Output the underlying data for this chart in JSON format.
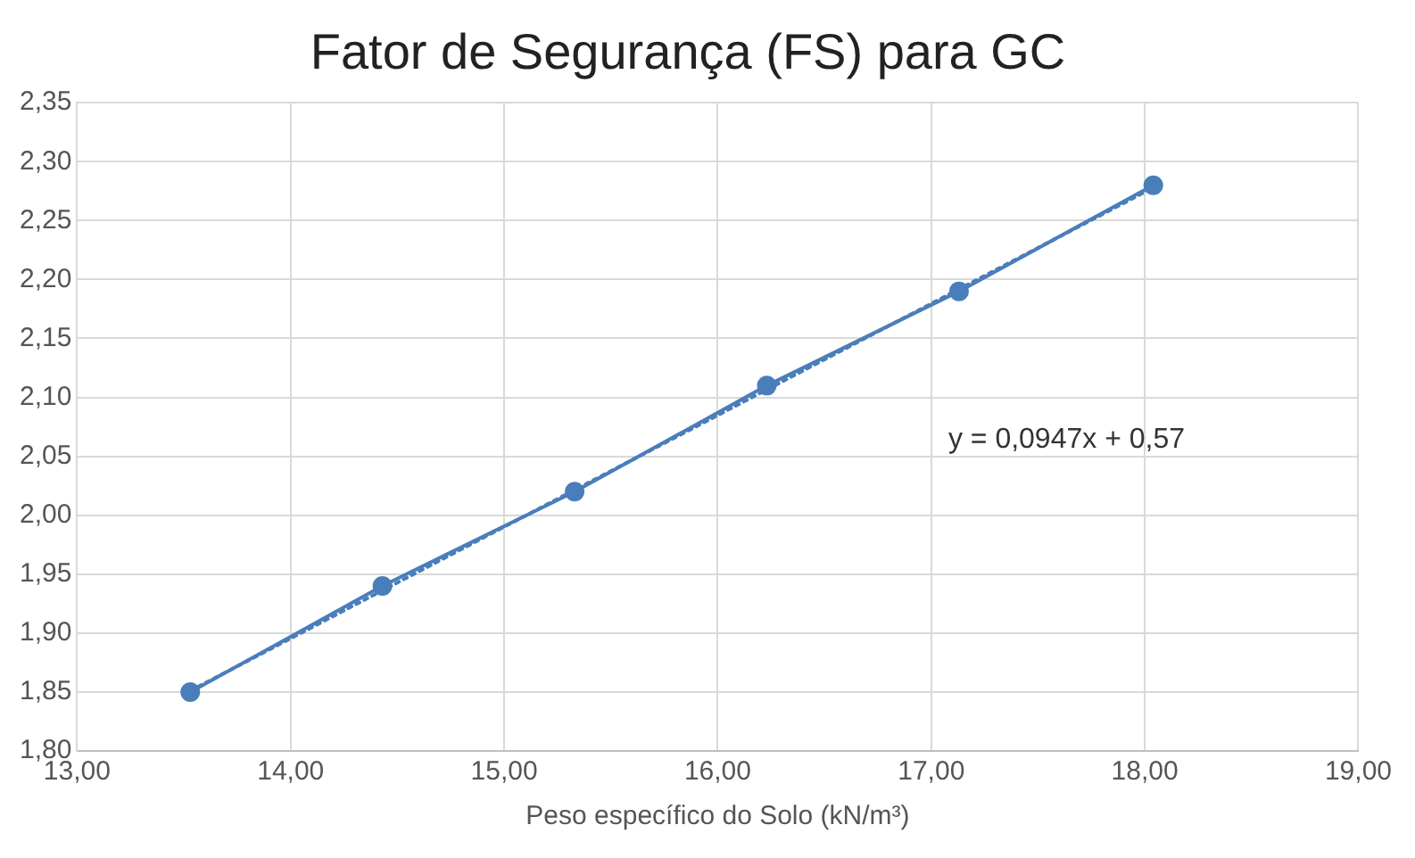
{
  "chart_data": {
    "type": "line",
    "title": "Fator de Segurança (FS) para GC",
    "xlabel": "Peso específico do Solo (kN/m³)",
    "series": [
      {
        "color": "#4a7ebb",
        "marker": "circle",
        "line_style": "solid",
        "x": [
          13.53,
          14.43,
          15.33,
          16.23,
          17.13,
          18.04
        ],
        "values": [
          1.85,
          1.94,
          2.02,
          2.11,
          2.19,
          2.28
        ]
      },
      {
        "color": "#4a7ebb",
        "marker": "none",
        "line_style": "dotted",
        "x": [
          13.53,
          18.04
        ],
        "values": [
          1.851,
          2.278
        ]
      }
    ],
    "xlim": [
      13,
      19
    ],
    "xticks": [
      {
        "value": 13,
        "label": "13,00"
      },
      {
        "value": 14,
        "label": "14,00"
      },
      {
        "value": 15,
        "label": "15,00"
      },
      {
        "value": 16,
        "label": "16,00"
      },
      {
        "value": 17,
        "label": "17,00"
      },
      {
        "value": 18,
        "label": "18,00"
      },
      {
        "value": 19,
        "label": "19,00"
      }
    ],
    "ylim": [
      1.8,
      2.35
    ],
    "yticks": [
      {
        "value": 1.8,
        "label": "1,80"
      },
      {
        "value": 1.85,
        "label": "1,85"
      },
      {
        "value": 1.9,
        "label": "1,90"
      },
      {
        "value": 1.95,
        "label": "1,95"
      },
      {
        "value": 2.0,
        "label": "2,00"
      },
      {
        "value": 2.05,
        "label": "2,05"
      },
      {
        "value": 2.1,
        "label": "2,10"
      },
      {
        "value": 2.15,
        "label": "2,15"
      },
      {
        "value": 2.2,
        "label": "2,20"
      },
      {
        "value": 2.25,
        "label": "2,25"
      },
      {
        "value": 2.3,
        "label": "2,30"
      },
      {
        "value": 2.35,
        "label": "2,35"
      }
    ],
    "grid": true,
    "legend": false,
    "annotations": [
      "y = 0,0947x + 0,57"
    ]
  }
}
